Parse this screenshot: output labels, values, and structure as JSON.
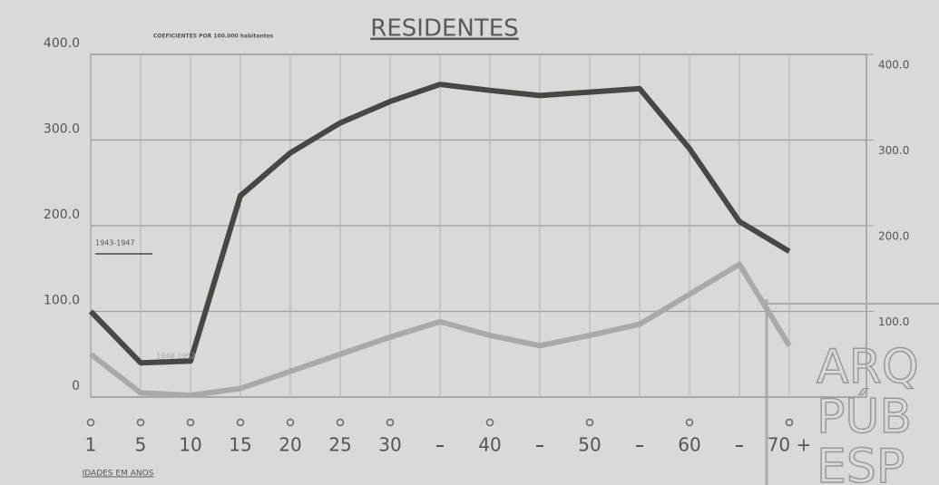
{
  "chart_data": {
    "type": "line",
    "title": "RESIDENTES",
    "subtitle": "COEFICIENTES POR 100.000 habitantes",
    "x_label": "IDADES EM ANOS",
    "categories": [
      "1",
      "5",
      "10",
      "15",
      "20",
      "25",
      "30",
      null,
      "40",
      null,
      "50",
      null,
      "60",
      null,
      "70 +"
    ],
    "series": [
      {
        "name": "1943-1947",
        "color": "#474747",
        "values": [
          100,
          40,
          42,
          235,
          285,
          320,
          345,
          365,
          358,
          352,
          356,
          360,
          290,
          205,
          170
        ]
      },
      {
        "name": "1948-1952",
        "color": "#a9a9a5",
        "values": [
          50,
          5,
          2,
          10,
          30,
          50,
          70,
          88,
          72,
          60,
          72,
          85,
          120,
          155,
          60
        ]
      }
    ],
    "ylim": [
      0,
      400
    ],
    "yticks": [
      {
        "value": 0,
        "label": "0"
      },
      {
        "value": 100,
        "label": "100.0"
      },
      {
        "value": 200,
        "label": "200.0"
      },
      {
        "value": 300,
        "label": "300.0"
      },
      {
        "value": 400,
        "label": "400.0"
      }
    ],
    "y2lim": [
      0,
      400
    ],
    "y2ticks": [
      {
        "value": 100,
        "label": "100.0"
      },
      {
        "value": 200,
        "label": "200.0"
      },
      {
        "value": 300,
        "label": "300.0"
      },
      {
        "value": 400,
        "label": "400.0"
      }
    ],
    "grid": true,
    "watermark": [
      "ARQ",
      "PÚB",
      "ESP"
    ]
  }
}
